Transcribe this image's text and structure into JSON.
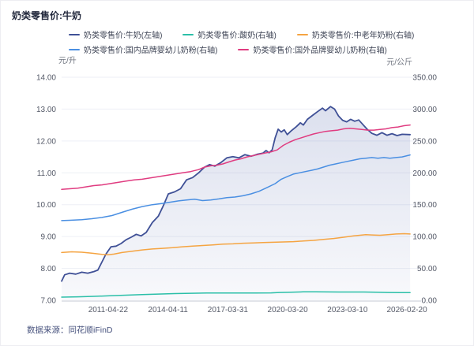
{
  "header": {
    "title": "奶类零售价:牛奶"
  },
  "legend": {
    "items": [
      {
        "label": "奶类零售价:牛奶(左轴)",
        "color": "#3f5096",
        "series": "milk"
      },
      {
        "label": "奶类零售价:酸奶(右轴)",
        "color": "#2bbfa8",
        "series": "yogurt"
      },
      {
        "label": "奶类零售价:中老年奶粉(右轴)",
        "color": "#f5a442",
        "series": "powder_mid_aged"
      },
      {
        "label": "奶类零售价:国内品牌婴幼儿奶粉(右轴)",
        "color": "#4a8fe2",
        "series": "powder_domestic"
      },
      {
        "label": "奶类零售价:国外品牌婴幼儿奶粉(右轴)",
        "color": "#e03c80",
        "series": "powder_foreign"
      }
    ]
  },
  "axes": {
    "left": {
      "unit": "元/升",
      "tick_labels": [
        "14.00",
        "13.00",
        "12.00",
        "11.00",
        "10.00",
        "9.00",
        "8.00",
        "7.00"
      ],
      "tick_values": [
        14,
        13,
        12,
        11,
        10,
        9,
        8,
        7
      ]
    },
    "right": {
      "unit": "元/公斤",
      "tick_labels": [
        "350.00",
        "300.00",
        "250.00",
        "200.00",
        "150.00",
        "100.00",
        "50.00",
        "0.00"
      ],
      "tick_values": [
        350,
        300,
        250,
        200,
        150,
        100,
        50,
        0
      ]
    },
    "x": {
      "ticks": [
        {
          "label": "2011-04-22",
          "year": 2011.31
        },
        {
          "label": "2014-04-11",
          "year": 2014.28
        },
        {
          "label": "2017-03-31",
          "year": 2017.25
        },
        {
          "label": "2020-03-20",
          "year": 2020.22
        },
        {
          "label": "2023-03-10",
          "year": 2023.19
        },
        {
          "label": "2026-02-20",
          "year": 2026.14
        }
      ]
    }
  },
  "footer": {
    "source": "数据来源：同花顺iFinD"
  },
  "colors": {
    "grid": "#edeff6",
    "axis_line": "#c6cad4",
    "tick_text": "#555a68",
    "area_top": "rgba(80,100,170,0.20)",
    "area_bottom": "rgba(80,100,170,0.04)"
  },
  "chart_data": {
    "type": "line",
    "title": "奶类零售价:牛奶",
    "x_range": [
      2009.0,
      2026.3
    ],
    "left_ylim": [
      7,
      14
    ],
    "right_ylim": [
      0,
      350
    ],
    "left_axis_unit": "元/升",
    "right_axis_unit": "元/公斤",
    "grid": "horizontal",
    "legend_position": "top",
    "series": [
      {
        "name": "奶类零售价:牛奶(左轴)",
        "axis": "left",
        "unit": "元/升",
        "color": "#3f5096",
        "area": true,
        "points": [
          [
            2009.0,
            7.6
          ],
          [
            2009.15,
            7.8
          ],
          [
            2009.4,
            7.85
          ],
          [
            2009.7,
            7.82
          ],
          [
            2010.0,
            7.88
          ],
          [
            2010.3,
            7.85
          ],
          [
            2010.6,
            7.9
          ],
          [
            2010.8,
            7.95
          ],
          [
            2011.0,
            8.2
          ],
          [
            2011.2,
            8.45
          ],
          [
            2011.45,
            8.68
          ],
          [
            2011.7,
            8.7
          ],
          [
            2011.95,
            8.78
          ],
          [
            2012.2,
            8.9
          ],
          [
            2012.45,
            8.98
          ],
          [
            2012.7,
            9.07
          ],
          [
            2012.95,
            9.02
          ],
          [
            2013.2,
            9.13
          ],
          [
            2013.5,
            9.44
          ],
          [
            2013.8,
            9.64
          ],
          [
            2014.05,
            9.97
          ],
          [
            2014.3,
            10.34
          ],
          [
            2014.6,
            10.4
          ],
          [
            2014.9,
            10.5
          ],
          [
            2015.2,
            10.78
          ],
          [
            2015.5,
            10.85
          ],
          [
            2015.8,
            11.0
          ],
          [
            2016.1,
            11.18
          ],
          [
            2016.35,
            11.26
          ],
          [
            2016.6,
            11.21
          ],
          [
            2016.9,
            11.32
          ],
          [
            2017.2,
            11.47
          ],
          [
            2017.5,
            11.51
          ],
          [
            2017.8,
            11.47
          ],
          [
            2018.1,
            11.57
          ],
          [
            2018.4,
            11.52
          ],
          [
            2018.7,
            11.58
          ],
          [
            2019.0,
            11.62
          ],
          [
            2019.15,
            11.7
          ],
          [
            2019.3,
            11.63
          ],
          [
            2019.45,
            11.72
          ],
          [
            2019.6,
            12.1
          ],
          [
            2019.75,
            12.37
          ],
          [
            2019.9,
            12.28
          ],
          [
            2020.05,
            12.35
          ],
          [
            2020.2,
            12.2
          ],
          [
            2020.4,
            12.32
          ],
          [
            2020.65,
            12.45
          ],
          [
            2020.85,
            12.57
          ],
          [
            2021.0,
            12.5
          ],
          [
            2021.2,
            12.68
          ],
          [
            2021.45,
            12.8
          ],
          [
            2021.7,
            12.92
          ],
          [
            2021.95,
            13.03
          ],
          [
            2022.1,
            12.95
          ],
          [
            2022.35,
            13.08
          ],
          [
            2022.55,
            13.0
          ],
          [
            2022.75,
            12.78
          ],
          [
            2022.95,
            12.65
          ],
          [
            2023.15,
            12.6
          ],
          [
            2023.35,
            12.68
          ],
          [
            2023.55,
            12.62
          ],
          [
            2023.75,
            12.66
          ],
          [
            2023.95,
            12.52
          ],
          [
            2024.15,
            12.38
          ],
          [
            2024.4,
            12.24
          ],
          [
            2024.65,
            12.18
          ],
          [
            2024.9,
            12.26
          ],
          [
            2025.15,
            12.18
          ],
          [
            2025.4,
            12.23
          ],
          [
            2025.65,
            12.17
          ],
          [
            2025.9,
            12.21
          ],
          [
            2026.3,
            12.2
          ]
        ]
      },
      {
        "name": "奶类零售价:酸奶(右轴)",
        "axis": "right",
        "unit": "元/公斤",
        "color": "#2bbfa8",
        "area": false,
        "points": [
          [
            2009.0,
            5
          ],
          [
            2009.8,
            5.5
          ],
          [
            2010.6,
            6.2
          ],
          [
            2011.4,
            7
          ],
          [
            2012.2,
            8
          ],
          [
            2013.0,
            9
          ],
          [
            2013.8,
            9.8
          ],
          [
            2014.6,
            10.5
          ],
          [
            2015.4,
            11
          ],
          [
            2016.2,
            11.4
          ],
          [
            2017.0,
            11.5
          ],
          [
            2017.8,
            11.5
          ],
          [
            2018.6,
            11.5
          ],
          [
            2019.4,
            11.6
          ],
          [
            2019.8,
            12.2
          ],
          [
            2020.4,
            12.8
          ],
          [
            2021.0,
            13.2
          ],
          [
            2021.6,
            13.3
          ],
          [
            2022.2,
            13.1
          ],
          [
            2022.8,
            13.0
          ],
          [
            2023.4,
            13.0
          ],
          [
            2024.0,
            13.0
          ],
          [
            2024.6,
            12.6
          ],
          [
            2025.2,
            12.2
          ],
          [
            2025.8,
            12.1
          ],
          [
            2026.3,
            12.1
          ]
        ]
      },
      {
        "name": "奶类零售价:中老年奶粉(右轴)",
        "axis": "right",
        "unit": "元/公斤",
        "color": "#f5a442",
        "area": false,
        "points": [
          [
            2009.0,
            75
          ],
          [
            2009.5,
            76
          ],
          [
            2010.0,
            75.5
          ],
          [
            2010.5,
            74
          ],
          [
            2011.0,
            72
          ],
          [
            2011.3,
            71.5
          ],
          [
            2011.6,
            72.5
          ],
          [
            2012.0,
            75
          ],
          [
            2012.5,
            77
          ],
          [
            2013.0,
            79
          ],
          [
            2013.5,
            80.5
          ],
          [
            2014.0,
            81.5
          ],
          [
            2014.5,
            82.5
          ],
          [
            2015.0,
            84
          ],
          [
            2015.5,
            85
          ],
          [
            2016.0,
            86
          ],
          [
            2016.5,
            87
          ],
          [
            2017.0,
            88
          ],
          [
            2017.5,
            88.5
          ],
          [
            2018.0,
            89.5
          ],
          [
            2018.5,
            90
          ],
          [
            2019.0,
            90.5
          ],
          [
            2019.5,
            91
          ],
          [
            2020.0,
            91.5
          ],
          [
            2020.5,
            92
          ],
          [
            2021.0,
            93
          ],
          [
            2021.5,
            94
          ],
          [
            2022.0,
            95.5
          ],
          [
            2022.5,
            97
          ],
          [
            2023.0,
            99
          ],
          [
            2023.5,
            101
          ],
          [
            2023.8,
            102
          ],
          [
            2024.1,
            103
          ],
          [
            2024.4,
            102.5
          ],
          [
            2024.8,
            102
          ],
          [
            2025.2,
            103
          ],
          [
            2025.6,
            104
          ],
          [
            2026.0,
            104.5
          ],
          [
            2026.3,
            104
          ]
        ]
      },
      {
        "name": "奶类零售价:国内品牌婴幼儿奶粉(右轴)",
        "axis": "right",
        "unit": "元/公斤",
        "color": "#4a8fe2",
        "area": false,
        "points": [
          [
            2009.0,
            125
          ],
          [
            2009.4,
            125.5
          ],
          [
            2010.0,
            126.5
          ],
          [
            2010.5,
            128
          ],
          [
            2011.0,
            130
          ],
          [
            2011.5,
            133
          ],
          [
            2012.0,
            138
          ],
          [
            2012.5,
            143
          ],
          [
            2013.0,
            147
          ],
          [
            2013.5,
            150
          ],
          [
            2014.0,
            152
          ],
          [
            2014.4,
            154
          ],
          [
            2014.8,
            156
          ],
          [
            2015.2,
            157.5
          ],
          [
            2015.6,
            158.5
          ],
          [
            2016.0,
            156.5
          ],
          [
            2016.4,
            157.5
          ],
          [
            2016.8,
            159
          ],
          [
            2017.2,
            161
          ],
          [
            2017.6,
            162
          ],
          [
            2018.0,
            164
          ],
          [
            2018.4,
            167
          ],
          [
            2018.8,
            171
          ],
          [
            2019.2,
            177
          ],
          [
            2019.6,
            183
          ],
          [
            2019.9,
            190
          ],
          [
            2020.2,
            194
          ],
          [
            2020.5,
            198
          ],
          [
            2020.8,
            200
          ],
          [
            2021.1,
            202
          ],
          [
            2021.4,
            204
          ],
          [
            2021.7,
            206
          ],
          [
            2022.0,
            209
          ],
          [
            2022.3,
            212
          ],
          [
            2022.6,
            214
          ],
          [
            2022.9,
            216
          ],
          [
            2023.2,
            218
          ],
          [
            2023.5,
            220
          ],
          [
            2023.8,
            222
          ],
          [
            2024.1,
            223
          ],
          [
            2024.4,
            224
          ],
          [
            2024.7,
            223
          ],
          [
            2025.0,
            224
          ],
          [
            2025.3,
            223
          ],
          [
            2025.6,
            224
          ],
          [
            2025.9,
            225
          ],
          [
            2026.3,
            228
          ]
        ]
      },
      {
        "name": "奶类零售价:国外品牌婴幼儿奶粉(右轴)",
        "axis": "right",
        "unit": "元/公斤",
        "color": "#e03c80",
        "area": false,
        "points": [
          [
            2009.0,
            174
          ],
          [
            2009.4,
            175
          ],
          [
            2009.8,
            176
          ],
          [
            2010.2,
            178
          ],
          [
            2010.6,
            180
          ],
          [
            2011.0,
            181
          ],
          [
            2011.4,
            183
          ],
          [
            2011.8,
            185
          ],
          [
            2012.2,
            187
          ],
          [
            2012.6,
            189
          ],
          [
            2013.0,
            190
          ],
          [
            2013.4,
            192
          ],
          [
            2013.8,
            194
          ],
          [
            2014.2,
            196
          ],
          [
            2014.6,
            198
          ],
          [
            2015.0,
            200
          ],
          [
            2015.4,
            202
          ],
          [
            2015.8,
            205
          ],
          [
            2016.1,
            209
          ],
          [
            2016.4,
            211
          ],
          [
            2016.7,
            212
          ],
          [
            2017.0,
            214
          ],
          [
            2017.3,
            217
          ],
          [
            2017.6,
            220
          ],
          [
            2017.9,
            222
          ],
          [
            2018.2,
            225
          ],
          [
            2018.5,
            227
          ],
          [
            2018.8,
            229
          ],
          [
            2019.1,
            231
          ],
          [
            2019.4,
            233
          ],
          [
            2019.7,
            236
          ],
          [
            2020.0,
            243
          ],
          [
            2020.3,
            248
          ],
          [
            2020.6,
            252
          ],
          [
            2020.9,
            255
          ],
          [
            2021.2,
            258
          ],
          [
            2021.5,
            261
          ],
          [
            2021.8,
            263
          ],
          [
            2022.1,
            265
          ],
          [
            2022.4,
            266
          ],
          [
            2022.7,
            267
          ],
          [
            2023.0,
            269
          ],
          [
            2023.3,
            270
          ],
          [
            2023.6,
            269
          ],
          [
            2023.9,
            268
          ],
          [
            2024.2,
            267
          ],
          [
            2024.5,
            267
          ],
          [
            2024.8,
            268
          ],
          [
            2025.1,
            269
          ],
          [
            2025.4,
            271
          ],
          [
            2025.7,
            272
          ],
          [
            2026.0,
            274
          ],
          [
            2026.3,
            275
          ]
        ]
      }
    ]
  }
}
